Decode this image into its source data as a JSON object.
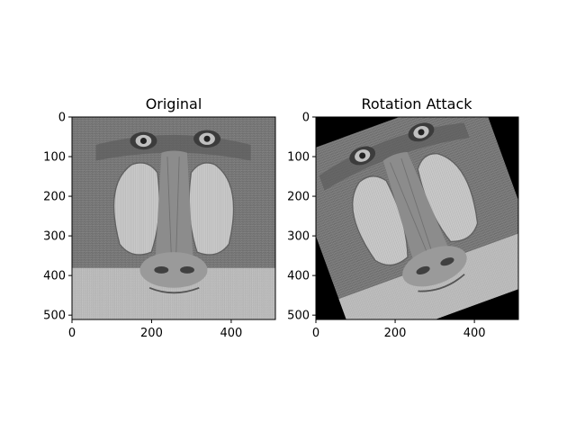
{
  "chart_data": [
    {
      "type": "image",
      "title": "Original",
      "content": "grayscale mandrill photograph",
      "xlim": [
        0,
        511
      ],
      "ylim": [
        511,
        0
      ],
      "xticks": [
        0,
        200,
        400
      ],
      "yticks": [
        0,
        100,
        200,
        300,
        400,
        500
      ],
      "xlabel": "",
      "ylabel": ""
    },
    {
      "type": "image",
      "title": "Rotation Attack",
      "content": "grayscale mandrill photograph rotated about 20 degrees counter-clockwise with black corners",
      "rotation_degrees": 20,
      "xlim": [
        0,
        511
      ],
      "ylim": [
        511,
        0
      ],
      "xticks": [
        0,
        200,
        400
      ],
      "yticks": [
        0,
        100,
        200,
        300,
        400,
        500
      ],
      "xlabel": "",
      "ylabel": ""
    }
  ],
  "colors": {
    "background": "#ffffff",
    "fur": "#7a7a7a",
    "nose_ridge": "#8c8c8c",
    "cheek": "#c8c8c8",
    "corner_fill": "#000000"
  }
}
